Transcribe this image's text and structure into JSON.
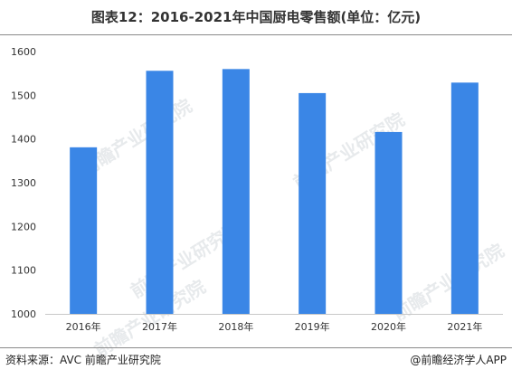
{
  "chart_data": {
    "type": "bar",
    "title": "图表12：2016-2021年中国厨电零售额(单位：亿元)",
    "categories": [
      "2016年",
      "2017年",
      "2018年",
      "2019年",
      "2020年",
      "2021年"
    ],
    "values": [
      1381,
      1556,
      1560,
      1505,
      1416,
      1529
    ],
    "ylim": [
      1000,
      1600
    ],
    "yticks": [
      "1000",
      "1100",
      "1200",
      "1300",
      "1400",
      "1500",
      "1600"
    ],
    "bar_color": "#3a86e6",
    "grid": false
  },
  "footer": {
    "source": "资料来源：AVC 前瞻产业研究院",
    "brand": "@前瞻经济学人APP"
  },
  "watermark": {
    "text": "前瞻产业研究院"
  }
}
